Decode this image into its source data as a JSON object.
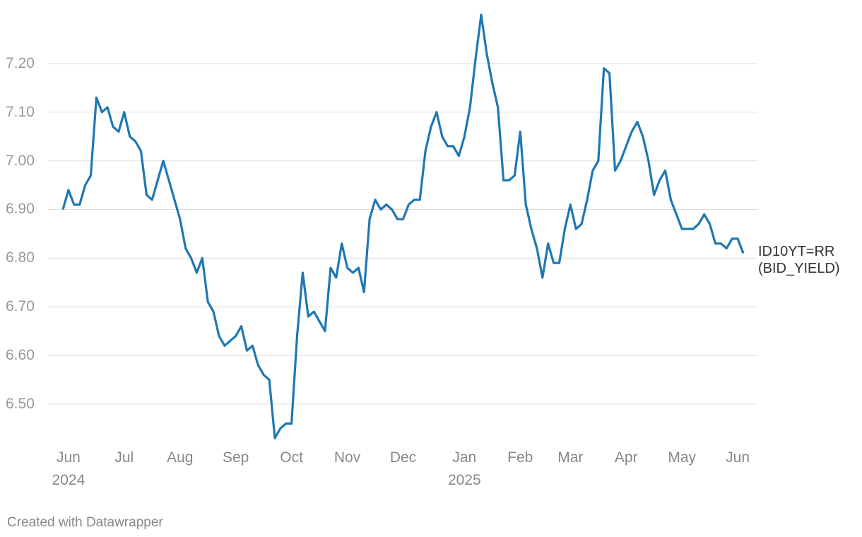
{
  "chart_data": {
    "type": "line",
    "categories": [
      null,
      "Jun\n2024",
      null,
      null,
      null,
      null,
      null,
      null,
      null,
      null,
      null,
      "Jul",
      null,
      null,
      null,
      null,
      null,
      null,
      null,
      null,
      null,
      "Aug",
      null,
      null,
      null,
      null,
      null,
      null,
      null,
      null,
      null,
      "Sep",
      null,
      null,
      null,
      null,
      null,
      null,
      null,
      null,
      null,
      "Oct",
      null,
      null,
      null,
      null,
      null,
      null,
      null,
      null,
      null,
      "Nov",
      null,
      null,
      null,
      null,
      null,
      null,
      null,
      null,
      null,
      "Dec",
      null,
      null,
      null,
      null,
      null,
      null,
      null,
      null,
      null,
      null,
      "Jan\n2025",
      null,
      null,
      null,
      null,
      null,
      null,
      null,
      null,
      null,
      "Feb",
      null,
      null,
      null,
      null,
      null,
      null,
      null,
      null,
      "Mar",
      null,
      null,
      null,
      null,
      null,
      null,
      null,
      null,
      null,
      "Apr",
      null,
      null,
      null,
      null,
      null,
      null,
      null,
      null,
      null,
      "May",
      null,
      null,
      null,
      null,
      null,
      null,
      null,
      null,
      null,
      "Jun",
      null
    ],
    "series": [
      {
        "name": "ID10YT=RR\n(BID_YIELD)",
        "color": "#1f77b4",
        "values": [
          6.9,
          6.94,
          6.91,
          6.91,
          6.95,
          6.97,
          7.13,
          7.1,
          7.11,
          7.07,
          7.06,
          7.1,
          7.05,
          7.04,
          7.02,
          6.93,
          6.92,
          6.96,
          7.0,
          6.96,
          6.92,
          6.88,
          6.82,
          6.8,
          6.77,
          6.8,
          6.71,
          6.69,
          6.64,
          6.62,
          6.63,
          6.64,
          6.66,
          6.61,
          6.62,
          6.58,
          6.56,
          6.55,
          6.43,
          6.45,
          6.46,
          6.46,
          6.64,
          6.77,
          6.68,
          6.69,
          6.67,
          6.65,
          6.78,
          6.76,
          6.83,
          6.78,
          6.77,
          6.78,
          6.73,
          6.88,
          6.92,
          6.9,
          6.91,
          6.9,
          6.88,
          6.88,
          6.91,
          6.92,
          6.92,
          7.02,
          7.07,
          7.1,
          7.05,
          7.03,
          7.03,
          7.01,
          7.05,
          7.11,
          7.21,
          7.3,
          7.22,
          7.16,
          7.11,
          6.96,
          6.96,
          6.97,
          7.06,
          6.91,
          6.86,
          6.82,
          6.76,
          6.83,
          6.79,
          6.79,
          6.86,
          6.91,
          6.86,
          6.87,
          6.92,
          6.98,
          7.0,
          7.19,
          7.18,
          6.98,
          7.0,
          7.03,
          7.06,
          7.08,
          7.05,
          7.0,
          6.93,
          6.96,
          6.98,
          6.92,
          6.89,
          6.86,
          6.86,
          6.86,
          6.87,
          6.89,
          6.87,
          6.83,
          6.83,
          6.82,
          6.84,
          6.84,
          6.81
        ]
      }
    ],
    "ylim": [
      6.42,
      7.3
    ],
    "yticks": [
      {
        "value": 6.5,
        "label": "6.50"
      },
      {
        "value": 6.6,
        "label": "6.60"
      },
      {
        "value": 6.7,
        "label": "6.70"
      },
      {
        "value": 6.8,
        "label": "6.80"
      },
      {
        "value": 6.9,
        "label": "6.90"
      },
      {
        "value": 7.0,
        "label": "7.00"
      },
      {
        "value": 7.1,
        "label": "7.10"
      },
      {
        "value": 7.2,
        "label": "7.20"
      }
    ],
    "grid": true,
    "footer": "Created with Datawrapper"
  }
}
